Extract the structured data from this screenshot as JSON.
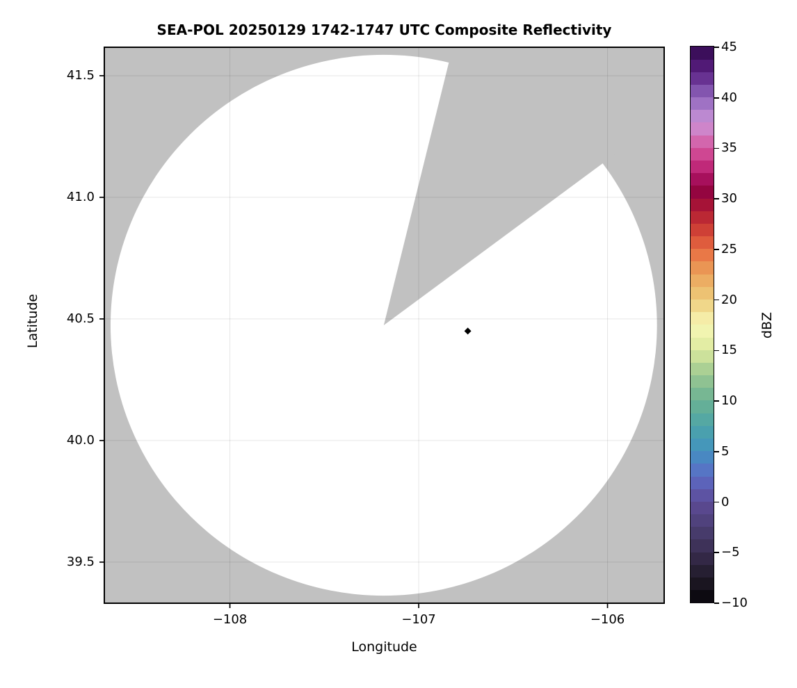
{
  "title": "SEA-POL 20250129 1742-1747 UTC Composite Reflectivity",
  "axes": {
    "xlabel": "Longitude",
    "ylabel": "Latitude",
    "x_tick_labels": [
      "−108",
      "−107",
      "−106"
    ],
    "y_tick_labels": [
      "41.5",
      "41.0",
      "40.5",
      "40.0",
      "39.5"
    ]
  },
  "colorbar": {
    "label": "dBZ",
    "tick_labels": [
      "45",
      "40",
      "35",
      "30",
      "25",
      "20",
      "15",
      "10",
      "5",
      "0",
      "−5",
      "−10"
    ]
  },
  "chart_data": {
    "type": "heatmap",
    "title": "SEA-POL 20250129 1742-1747 UTC Composite Reflectivity",
    "xlabel": "Longitude",
    "ylabel": "Latitude",
    "xlim": [
      -108.665,
      -105.7
    ],
    "ylim": [
      39.331,
      41.617
    ],
    "xticks": [
      -108,
      -107,
      -106
    ],
    "yticks": [
      41.5,
      41.0,
      40.5,
      40.0,
      39.5
    ],
    "grid": true,
    "grid_color": "rgba(0,0,0,0.10)",
    "masked_color": "#c1c1c1",
    "coverage_color": "#ffffff",
    "colorbar": {
      "label": "dBZ",
      "vmin": -10,
      "vmax": 45,
      "ticks": [
        45,
        40,
        35,
        30,
        25,
        20,
        15,
        10,
        5,
        0,
        -5,
        -10
      ],
      "band_step_dbz": 1.25,
      "colormap_stops": [
        {
          "value": -10,
          "color": "#060509"
        },
        {
          "value": -7.5,
          "color": "#201a28"
        },
        {
          "value": -5,
          "color": "#392d50"
        },
        {
          "value": -2.5,
          "color": "#4c3f74"
        },
        {
          "value": 0,
          "color": "#5d4b97"
        },
        {
          "value": 2.5,
          "color": "#5c6bc6"
        },
        {
          "value": 5,
          "color": "#4292c0"
        },
        {
          "value": 7.5,
          "color": "#4da4a8"
        },
        {
          "value": 10,
          "color": "#6bb293"
        },
        {
          "value": 12.5,
          "color": "#9bc791"
        },
        {
          "value": 15,
          "color": "#dcea9e"
        },
        {
          "value": 17.5,
          "color": "#f8f7b6"
        },
        {
          "value": 20,
          "color": "#edcc7b"
        },
        {
          "value": 22.5,
          "color": "#eba35b"
        },
        {
          "value": 25,
          "color": "#e86a40"
        },
        {
          "value": 27.5,
          "color": "#c53233"
        },
        {
          "value": 30,
          "color": "#9c0838"
        },
        {
          "value": 31,
          "color": "#8f0345"
        },
        {
          "value": 32.5,
          "color": "#b81a6d"
        },
        {
          "value": 35,
          "color": "#d6569e"
        },
        {
          "value": 37.5,
          "color": "#cb95d8"
        },
        {
          "value": 40,
          "color": "#9066bd"
        },
        {
          "value": 42.5,
          "color": "#5b2083"
        },
        {
          "value": 45,
          "color": "#32094d"
        }
      ]
    },
    "radar_coverage": {
      "center_lon": -107.185,
      "center_lat": 40.474,
      "radius_lon_deg": 1.447,
      "radius_lat_deg": 1.112,
      "missing_sector_azimuth_deg": {
        "start": 13.9,
        "end": 53.5
      }
    },
    "points": [
      {
        "lon": -106.74,
        "lat": 40.45,
        "marker": "diamond",
        "color": "#000000"
      }
    ]
  }
}
